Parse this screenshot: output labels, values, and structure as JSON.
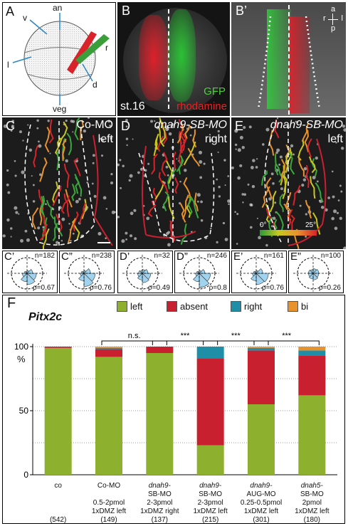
{
  "panels": {
    "A": {
      "label": "A",
      "axes": [
        "an",
        "v",
        "l",
        "r",
        "d",
        "veg"
      ]
    },
    "B": {
      "label": "B",
      "stage": "st.16",
      "gfp": "GFP",
      "rhodamine": "rhodamine"
    },
    "B2": {
      "label": "B’",
      "compass": {
        "a": "a",
        "r": "r",
        "l": "l",
        "p": "p"
      }
    },
    "C": {
      "label": "C",
      "title1": "Co-MO",
      "title2": "left"
    },
    "D": {
      "label": "D",
      "title1": "dnah9-SB-MO",
      "title2": "right"
    },
    "E": {
      "label": "E",
      "title1": "dnah9-SB-MO",
      "title2": "left",
      "scale_min": "0°",
      "scale_max": "25°"
    }
  },
  "roses": [
    {
      "label": "C’",
      "n": "n=182",
      "rho": "ρ=0.67"
    },
    {
      "label": "C”",
      "n": "n=238",
      "rho": "ρ=0.76"
    },
    {
      "label": "D’",
      "n": "n=32",
      "rho": "ρ=0.49"
    },
    {
      "label": "D”",
      "n": "n=246",
      "rho": "ρ=0.8"
    },
    {
      "label": "E’",
      "n": "n=161",
      "rho": "ρ=0.76"
    },
    {
      "label": "E”",
      "n": "n=100",
      "rho": "ρ=0.26"
    }
  ],
  "figF": {
    "label": "F",
    "gene": "Pitx2c",
    "ylabel_unit": "%",
    "significance": [
      "n.s.",
      "***",
      "***",
      "***"
    ],
    "legend": [
      {
        "name": "left",
        "color": "#8db02e"
      },
      {
        "name": "absent",
        "color": "#c8202f"
      },
      {
        "name": "right",
        "color": "#1f8fa8"
      },
      {
        "name": "bi",
        "color": "#e8922e"
      }
    ]
  },
  "chart_data": {
    "type": "bar",
    "stacked": true,
    "ylim": [
      0,
      100
    ],
    "yticks": [
      "0",
      "50",
      "100"
    ],
    "categories": [
      {
        "lines": [
          "co"
        ],
        "n": "(542)"
      },
      {
        "lines": [
          "Co-MO",
          "",
          "0.5-2pmol",
          "1xDMZ left"
        ],
        "n": "(149)"
      },
      {
        "lines": [
          "dnah9-",
          "SB-MO",
          "2-3pmol",
          "1xDMZ right"
        ],
        "n": "(137)"
      },
      {
        "lines": [
          "dnah9-",
          "SB-MO",
          "2-3pmol",
          "1xDMZ left"
        ],
        "n": "(215)"
      },
      {
        "lines": [
          "dnah9-",
          "AUG-MO",
          "0.25-0.5pmol",
          "1xDMZ left"
        ],
        "n": "(301)"
      },
      {
        "lines": [
          "dnah5-",
          "SB-MO",
          "2pmol",
          "1xDMZ left"
        ],
        "n": "(180)"
      }
    ],
    "series": [
      {
        "name": "left",
        "values": [
          99,
          92,
          95,
          23,
          55,
          62
        ]
      },
      {
        "name": "absent",
        "values": [
          1,
          6,
          5,
          68,
          42,
          31
        ]
      },
      {
        "name": "right",
        "values": [
          0,
          1,
          0,
          9,
          2,
          4
        ]
      },
      {
        "name": "bi",
        "values": [
          0,
          1,
          0,
          0,
          1,
          3
        ]
      }
    ]
  }
}
